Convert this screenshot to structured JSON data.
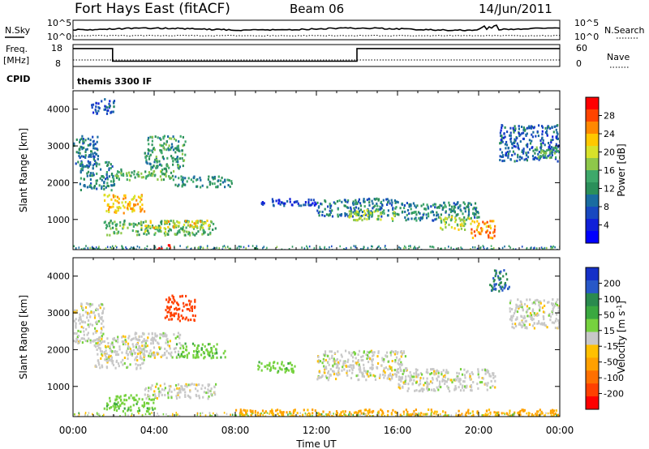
{
  "header": {
    "station": "Fort Hays East (fitACF)",
    "beam": "Beam 06",
    "date": "14/Jun/2011"
  },
  "strip": {
    "nsky_label": "N.Sky",
    "nsearch_label": "N.Search",
    "freq_label": "Freq.",
    "freq_unit": "[MHz]",
    "nave_label": "Nave",
    "cpid_label": "CPID",
    "cpid_text": "themis 3300 IF",
    "noise_ticks": [
      "10^5",
      "10^0"
    ],
    "freq_ticks": [
      "18",
      "8"
    ],
    "nave_ticks": [
      "60",
      "0"
    ],
    "freq_steps": [
      {
        "t_start": 0.0,
        "t_end": 1.95,
        "level": 16.2
      },
      {
        "t_start": 1.95,
        "t_end": 14.0,
        "level": 10.4
      },
      {
        "t_start": 14.0,
        "t_end": 24.0,
        "level": 16.2
      }
    ]
  },
  "chart_data": [
    {
      "type": "heatmap",
      "name": "power",
      "xlabel": "Time UT",
      "ylabel": "Slant Range [km]",
      "xlim": [
        0,
        24
      ],
      "ylim": [
        180,
        4500
      ],
      "x_ticks": [
        "00:00",
        "04:00",
        "08:00",
        "12:00",
        "16:00",
        "20:00",
        "00:00"
      ],
      "y_ticks": [
        1000,
        2000,
        3000,
        4000
      ],
      "colorbar": {
        "label": "Power [dB]",
        "ticks": [
          "28",
          "24",
          "20",
          "16",
          "12",
          "8",
          "4"
        ],
        "colors": [
          "#ff0000",
          "#ff4400",
          "#ff8800",
          "#ffc800",
          "#d8e22a",
          "#8ec84a",
          "#3ea86a",
          "#2b8f5a",
          "#1a6ca0",
          "#1848c0",
          "#1020d8",
          "#0000ff"
        ]
      },
      "regions": [
        {
          "t": [
            0.0,
            1.2
          ],
          "r": [
            2500,
            3300
          ],
          "v": 8
        },
        {
          "t": [
            0.3,
            2.0
          ],
          "r": [
            1800,
            2600
          ],
          "v": 10
        },
        {
          "t": [
            1.5,
            3.5
          ],
          "r": [
            1200,
            1700
          ],
          "v": 22
        },
        {
          "t": [
            2.0,
            5.0
          ],
          "r": [
            2100,
            2400
          ],
          "v": 14
        },
        {
          "t": [
            3.5,
            5.5
          ],
          "r": [
            2400,
            3300
          ],
          "v": 12
        },
        {
          "t": [
            5.0,
            7.8
          ],
          "r": [
            1900,
            2200
          ],
          "v": 11
        },
        {
          "t": [
            1.5,
            7.0
          ],
          "r": [
            600,
            1000
          ],
          "v": 14
        },
        {
          "t": [
            3.5,
            6.8
          ],
          "r": [
            800,
            1000
          ],
          "v": 20
        },
        {
          "t": [
            0.8,
            2.0
          ],
          "r": [
            3900,
            4300
          ],
          "v": 6
        },
        {
          "t": [
            9.0,
            12.0
          ],
          "r": [
            1400,
            1600
          ],
          "v": 5
        },
        {
          "t": [
            12.0,
            16.0
          ],
          "r": [
            1100,
            1600
          ],
          "v": 9
        },
        {
          "t": [
            13.5,
            16.0
          ],
          "r": [
            1000,
            1300
          ],
          "v": 16
        },
        {
          "t": [
            16.0,
            20.0
          ],
          "r": [
            1000,
            1500
          ],
          "v": 10
        },
        {
          "t": [
            18.0,
            19.6
          ],
          "r": [
            750,
            1100
          ],
          "v": 18
        },
        {
          "t": [
            19.6,
            20.8
          ],
          "r": [
            500,
            1000
          ],
          "v": 24
        },
        {
          "t": [
            21.0,
            24.0
          ],
          "r": [
            2600,
            3600
          ],
          "v": 7
        },
        {
          "t": [
            22.8,
            24.0
          ],
          "r": [
            2700,
            3000
          ],
          "v": 14
        },
        {
          "t": [
            4.0,
            4.8
          ],
          "r": [
            200,
            330
          ],
          "v": 30
        }
      ]
    },
    {
      "type": "heatmap",
      "name": "velocity",
      "xlabel": "Time UT",
      "ylabel": "Slant Range [km]",
      "xlim": [
        0,
        24
      ],
      "ylim": [
        180,
        4500
      ],
      "x_ticks": [
        "00:00",
        "04:00",
        "08:00",
        "12:00",
        "16:00",
        "20:00",
        "00:00"
      ],
      "y_ticks": [
        1000,
        2000,
        3000,
        4000
      ],
      "colorbar": {
        "label": "Velocity [m s^-1]",
        "ticks": [
          "200",
          "100",
          "50",
          "15",
          "-15",
          "-50",
          "-100",
          "-200"
        ],
        "colors": [
          "#1530c8",
          "#2858c8",
          "#2a8a4e",
          "#3aa840",
          "#76d23e",
          "#c8c8c8",
          "#ffc000",
          "#ffa000",
          "#ff7000",
          "#ff4000",
          "#ff0000"
        ]
      },
      "regions": [
        {
          "t": [
            0.0,
            1.5
          ],
          "r": [
            2200,
            3300
          ],
          "v": 0
        },
        {
          "t": [
            1.0,
            3.5
          ],
          "r": [
            1500,
            2400
          ],
          "v": 0
        },
        {
          "t": [
            3.0,
            5.3
          ],
          "r": [
            1800,
            2500
          ],
          "v": 0
        },
        {
          "t": [
            4.5,
            6.0
          ],
          "r": [
            2800,
            3500
          ],
          "v": -180
        },
        {
          "t": [
            5.0,
            7.5
          ],
          "r": [
            1800,
            2200
          ],
          "v": 40
        },
        {
          "t": [
            1.5,
            4.0
          ],
          "r": [
            350,
            800
          ],
          "v": 35
        },
        {
          "t": [
            3.5,
            7.0
          ],
          "r": [
            700,
            1100
          ],
          "v": 0
        },
        {
          "t": [
            8.0,
            24.0
          ],
          "r": [
            200,
            400
          ],
          "v": -60
        },
        {
          "t": [
            12.0,
            16.5
          ],
          "r": [
            1200,
            2000
          ],
          "v": 0
        },
        {
          "t": [
            16.0,
            20.8
          ],
          "r": [
            900,
            1500
          ],
          "v": 0
        },
        {
          "t": [
            20.5,
            21.5
          ],
          "r": [
            3600,
            4200
          ],
          "v": 150
        },
        {
          "t": [
            21.5,
            24.0
          ],
          "r": [
            2600,
            3400
          ],
          "v": 0
        },
        {
          "t": [
            9.0,
            11.0
          ],
          "r": [
            1400,
            1700
          ],
          "v": 40
        }
      ]
    }
  ]
}
